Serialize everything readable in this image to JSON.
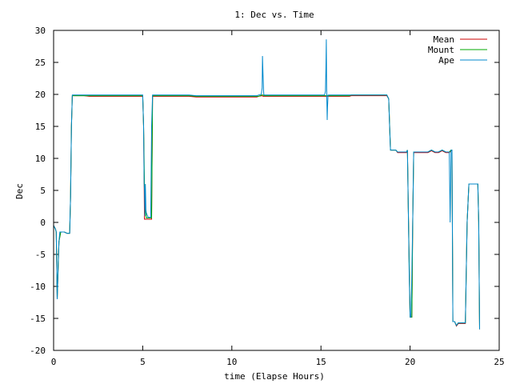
{
  "chart_data": {
    "type": "line",
    "title": "1: Dec vs. Time",
    "xlabel": "time (Elapse Hours)",
    "ylabel": "Dec",
    "xlim": [
      0,
      25
    ],
    "ylim": [
      -20,
      30
    ],
    "xticks": [
      0,
      5,
      10,
      15,
      20,
      25
    ],
    "yticks": [
      -20,
      -15,
      -10,
      -5,
      0,
      5,
      10,
      15,
      20,
      25,
      30
    ],
    "grid": false,
    "legend_position": "top-right",
    "series": [
      {
        "name": "Mean",
        "color": "#cc0000",
        "x": [
          0.0,
          0.1,
          0.15,
          0.2,
          0.3,
          0.4,
          0.5,
          0.6,
          0.75,
          0.8,
          0.9,
          0.95,
          1.0,
          1.05,
          1.1,
          1.5,
          1.7,
          2.0,
          5.0,
          5.05,
          5.1,
          5.2,
          5.3,
          5.5,
          5.55,
          5.6,
          6.0,
          7.6,
          8.0,
          11.4,
          11.5,
          11.7,
          11.75,
          11.8,
          11.85,
          11.9,
          12.0,
          15.2,
          15.3,
          15.35,
          15.4,
          15.45,
          15.5,
          16.0,
          16.6,
          16.7,
          17.0,
          18.7,
          18.8,
          18.9,
          19.0,
          19.2,
          19.3,
          19.5,
          19.8,
          19.85,
          19.9,
          20.0,
          20.1,
          20.15,
          20.2,
          20.3,
          20.5,
          21.0,
          21.2,
          21.4,
          21.6,
          21.8,
          22.0,
          22.2,
          22.3,
          22.35,
          22.4,
          22.5,
          22.6,
          22.7,
          23.0,
          23.1,
          23.2,
          23.3,
          23.4,
          23.5,
          23.6,
          23.8,
          23.85,
          23.9
        ],
        "y": [
          -0.5,
          -1.0,
          -1.5,
          -12.0,
          -3.0,
          -1.5,
          -1.5,
          -1.5,
          -1.7,
          -1.7,
          -1.7,
          4.0,
          15.0,
          19.8,
          19.8,
          19.8,
          19.8,
          19.7,
          19.7,
          15.0,
          0.5,
          0.5,
          0.5,
          0.5,
          19.7,
          19.7,
          19.7,
          19.7,
          19.6,
          19.6,
          19.7,
          19.8,
          19.7,
          19.7,
          19.7,
          19.7,
          19.7,
          19.7,
          19.7,
          19.7,
          19.7,
          19.7,
          19.7,
          19.7,
          19.7,
          19.8,
          19.8,
          19.8,
          19.3,
          11.3,
          11.3,
          11.3,
          10.9,
          10.9,
          10.9,
          11.3,
          2.0,
          -14.8,
          -14.8,
          0.0,
          10.9,
          10.9,
          10.9,
          10.9,
          11.2,
          10.9,
          10.9,
          11.2,
          10.9,
          10.9,
          11.2,
          11.2,
          -15.5,
          -15.5,
          -16.2,
          -15.8,
          -15.8,
          -15.8,
          0.0,
          6.0,
          6.0,
          6.0,
          6.0,
          6.0,
          0.0,
          -16.7
        ]
      },
      {
        "name": "Mount",
        "color": "#00aa00",
        "x": [
          0.0,
          0.1,
          0.15,
          0.2,
          0.3,
          0.4,
          0.5,
          0.6,
          0.75,
          0.8,
          0.9,
          0.95,
          1.0,
          1.05,
          1.1,
          1.5,
          1.7,
          2.0,
          5.0,
          5.05,
          5.1,
          5.15,
          5.2,
          5.3,
          5.5,
          5.55,
          5.6,
          6.0,
          7.6,
          8.0,
          11.4,
          11.5,
          11.7,
          11.75,
          11.8,
          11.85,
          11.9,
          12.0,
          15.2,
          15.3,
          15.35,
          15.4,
          15.45,
          15.5,
          16.0,
          16.6,
          16.7,
          17.0,
          18.7,
          18.8,
          18.9,
          19.0,
          19.2,
          19.3,
          19.5,
          19.8,
          19.85,
          19.9,
          20.0,
          20.1,
          20.15,
          20.2,
          20.3,
          20.5,
          21.0,
          21.2,
          21.4,
          21.6,
          21.8,
          22.0,
          22.2,
          22.3,
          22.35,
          22.4,
          22.5,
          22.6,
          22.7,
          23.0,
          23.1,
          23.2,
          23.3,
          23.4,
          23.5,
          23.6,
          23.8,
          23.85,
          23.9
        ],
        "y": [
          -0.5,
          -1.0,
          -1.5,
          -12.0,
          -3.0,
          -1.5,
          -1.5,
          -1.5,
          -1.7,
          -1.7,
          -1.7,
          4.0,
          15.0,
          19.8,
          19.8,
          19.8,
          19.8,
          19.8,
          19.8,
          15.0,
          6.0,
          2.0,
          0.7,
          0.7,
          0.7,
          19.8,
          19.8,
          19.8,
          19.8,
          19.7,
          19.7,
          19.7,
          19.9,
          19.9,
          19.8,
          19.8,
          19.8,
          19.8,
          19.8,
          19.8,
          19.8,
          19.8,
          19.8,
          19.8,
          19.8,
          19.8,
          19.9,
          19.9,
          19.9,
          19.3,
          11.3,
          11.3,
          11.3,
          11.0,
          11.0,
          11.0,
          11.3,
          2.0,
          -14.8,
          -14.8,
          0.0,
          11.0,
          11.0,
          11.0,
          11.0,
          11.3,
          11.0,
          11.0,
          11.3,
          11.0,
          11.0,
          11.3,
          11.3,
          -15.5,
          -15.5,
          -16.1,
          -15.7,
          -15.7,
          -15.7,
          0.0,
          6.0,
          6.0,
          6.0,
          6.0,
          6.0,
          0.0,
          -16.7
        ]
      },
      {
        "name": "Ape",
        "color": "#0088cc",
        "x": [
          0.0,
          0.1,
          0.15,
          0.2,
          0.25,
          0.3,
          0.35,
          0.4,
          0.5,
          0.6,
          0.75,
          0.8,
          0.9,
          0.95,
          1.0,
          1.05,
          1.1,
          1.5,
          1.7,
          2.0,
          5.0,
          5.05,
          5.08,
          5.1,
          5.12,
          5.15,
          5.18,
          5.2,
          5.3,
          5.45,
          5.5,
          5.55,
          5.6,
          6.0,
          7.6,
          8.0,
          11.4,
          11.5,
          11.65,
          11.7,
          11.72,
          11.75,
          11.78,
          11.8,
          11.85,
          11.9,
          12.0,
          15.2,
          15.25,
          15.28,
          15.3,
          15.32,
          15.35,
          15.37,
          15.4,
          15.45,
          15.5,
          15.55,
          16.0,
          16.6,
          16.7,
          17.0,
          18.7,
          18.8,
          18.85,
          18.9,
          19.0,
          19.2,
          19.3,
          19.5,
          19.8,
          19.85,
          19.9,
          19.95,
          20.0,
          20.05,
          20.1,
          20.15,
          20.2,
          20.3,
          20.5,
          21.0,
          21.2,
          21.4,
          21.6,
          21.8,
          22.0,
          22.2,
          22.25,
          22.3,
          22.35,
          22.4,
          22.5,
          22.6,
          22.7,
          23.0,
          23.1,
          23.2,
          23.3,
          23.4,
          23.5,
          23.6,
          23.8,
          23.85,
          23.9
        ],
        "y": [
          -0.5,
          -1.0,
          -1.5,
          -12.0,
          -7.0,
          -3.0,
          -1.5,
          -1.5,
          -1.5,
          -1.5,
          -1.7,
          -1.7,
          -1.7,
          4.0,
          15.0,
          19.9,
          19.9,
          19.9,
          19.9,
          19.9,
          19.9,
          15.0,
          6.0,
          5.0,
          1.0,
          6.0,
          2.0,
          1.5,
          0.8,
          0.8,
          15.0,
          19.9,
          19.9,
          19.9,
          19.9,
          19.8,
          19.8,
          19.9,
          20.0,
          21.0,
          26.0,
          23.0,
          20.5,
          19.9,
          19.9,
          19.9,
          19.9,
          19.9,
          20.5,
          24.0,
          28.6,
          21.0,
          16.0,
          18.0,
          19.9,
          19.9,
          19.9,
          19.9,
          19.9,
          19.9,
          19.9,
          19.9,
          19.9,
          19.3,
          15.0,
          11.3,
          11.3,
          11.3,
          11.0,
          11.0,
          11.0,
          11.3,
          2.0,
          -8.0,
          -14.8,
          -14.8,
          -8.0,
          0.0,
          11.0,
          11.0,
          11.0,
          11.0,
          11.3,
          11.0,
          11.0,
          11.3,
          11.0,
          11.0,
          0.0,
          11.3,
          11.3,
          -15.5,
          -15.5,
          -16.1,
          -15.7,
          -15.7,
          -15.7,
          0.0,
          6.0,
          6.0,
          6.0,
          6.0,
          6.0,
          0.0,
          -16.7
        ]
      }
    ]
  }
}
